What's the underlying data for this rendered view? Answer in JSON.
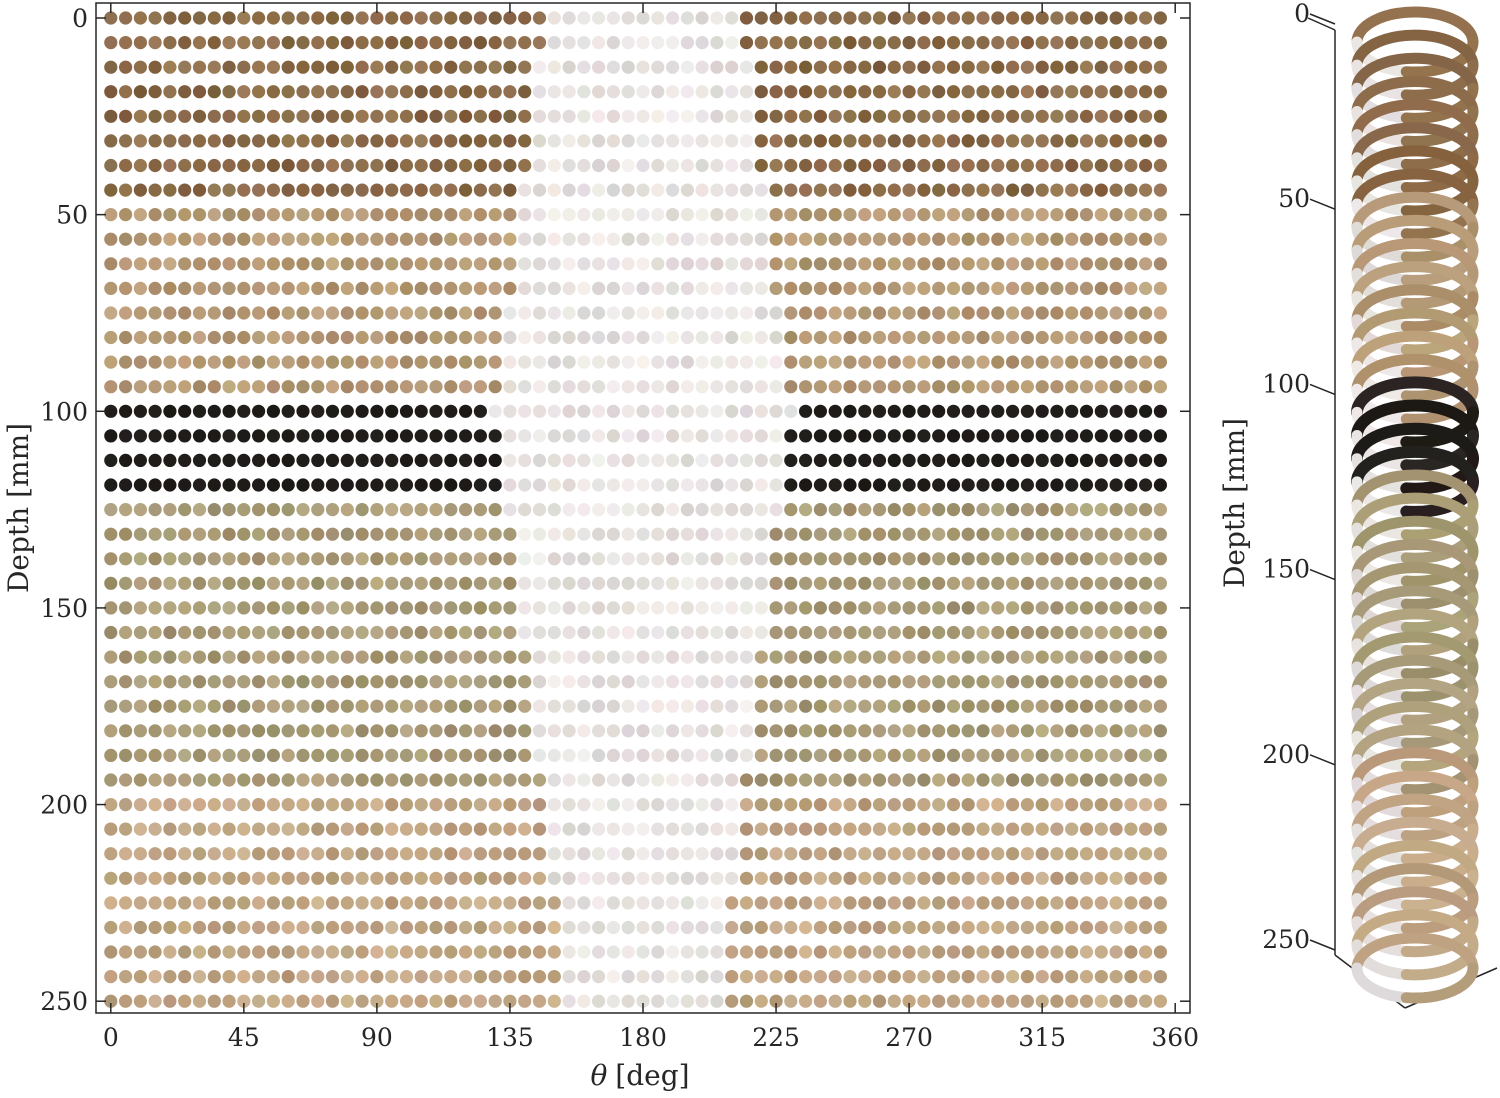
{
  "chart_data": [
    {
      "type": "scatter",
      "description_of_layout": "unwrapped borehole image",
      "xlabel_symbol": "θ",
      "xlabel_unit": "[deg]",
      "ylabel": "Depth [mm]",
      "xlim": [
        -5,
        365
      ],
      "ylim": [
        0,
        253
      ],
      "y_reversed": true,
      "x_ticks": [
        0,
        45,
        90,
        135,
        180,
        225,
        270,
        315,
        360
      ],
      "y_ticks": [
        0,
        50,
        100,
        150,
        200,
        250
      ],
      "theta_step_deg": 5,
      "theta_max_deg": 355,
      "depth_step_mm": 6.25,
      "depth_max_mm": 250,
      "grid": false,
      "bands": [
        {
          "depth_from": 0,
          "depth_to": 43.75,
          "color": "#8a6a48",
          "label": "dark brown layer"
        },
        {
          "depth_from": 50,
          "depth_to": 93.75,
          "color": "#b49874",
          "label": "light brown layer"
        },
        {
          "depth_from": 100,
          "depth_to": 118.75,
          "color": "#1f1c19",
          "label": "black layer"
        },
        {
          "depth_from": 125,
          "depth_to": 193.75,
          "color": "#a89a76",
          "label": "olive tan layer"
        },
        {
          "depth_from": 200,
          "depth_to": 250,
          "color": "#c0a584",
          "label": "light tan layer"
        }
      ],
      "washout": {
        "center_deg": 180,
        "min_half_width_deg": 27,
        "max_half_width_deg": 50,
        "apex_depth_mm": 100,
        "color": "#e6e1df"
      }
    },
    {
      "type": "scatter3d",
      "ylabel": "Depth [mm]",
      "z_ticks": [
        0,
        50,
        100,
        150,
        200,
        250
      ],
      "zlim": [
        0,
        250
      ],
      "z_reversed": true
    }
  ]
}
